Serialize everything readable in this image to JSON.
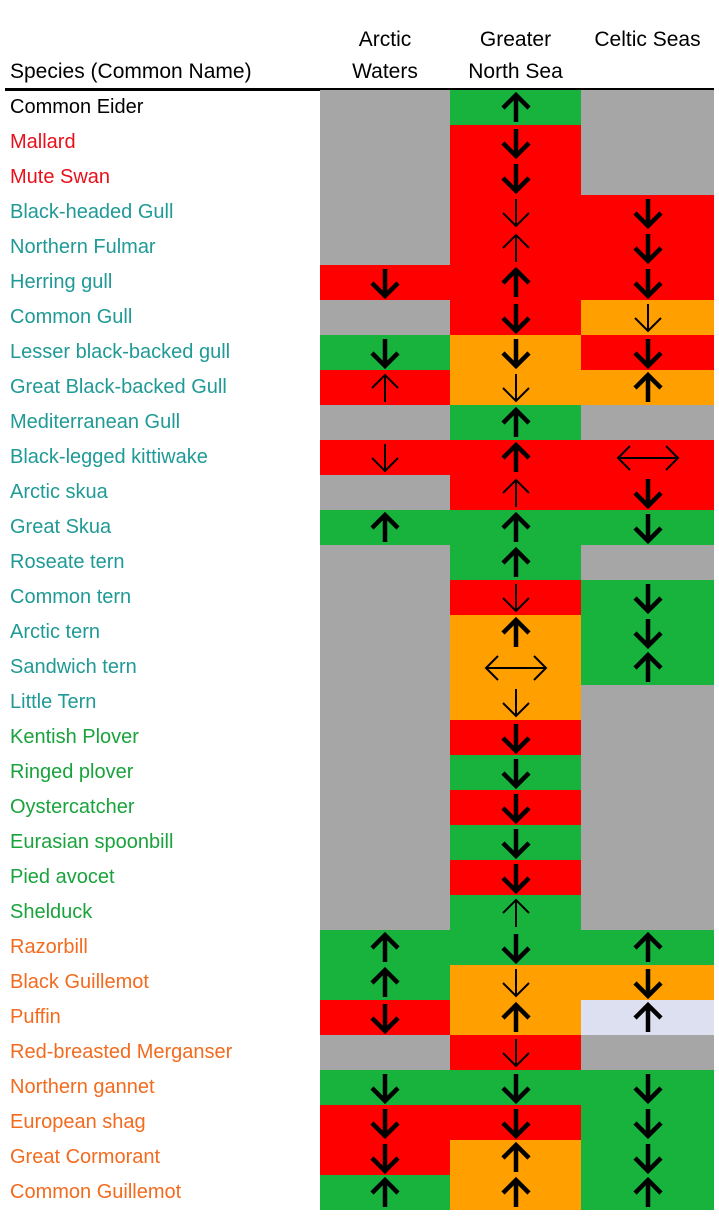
{
  "header": {
    "species": "Species (Common Name)",
    "arctic": "Arctic\nWaters",
    "greater_north_sea": "Greater\nNorth Sea",
    "celtic": "Celtic Seas"
  },
  "colors": {
    "black": "#000000",
    "red_text": "#e8101a",
    "teal_text": "#1f9a96",
    "green_text": "#1aa33c",
    "orange_text": "#f26b1f",
    "grey": "#a6a6a6",
    "green": "#17b33d",
    "red": "#ff0000",
    "orange": "#ff9f00",
    "lavender": "#dce0f0"
  },
  "rows": [
    {
      "name": "Common Eider",
      "group": "black",
      "cells": [
        [
          "grey",
          ""
        ],
        [
          "green",
          "up-bold"
        ],
        [
          "grey",
          ""
        ]
      ]
    },
    {
      "name": "Mallard",
      "group": "red",
      "cells": [
        [
          "grey",
          ""
        ],
        [
          "red",
          "down-bold"
        ],
        [
          "grey",
          ""
        ]
      ]
    },
    {
      "name": "Mute Swan",
      "group": "red",
      "cells": [
        [
          "grey",
          ""
        ],
        [
          "red",
          "down-bold"
        ],
        [
          "grey",
          ""
        ]
      ]
    },
    {
      "name": "Black-headed Gull",
      "group": "teal",
      "cells": [
        [
          "grey",
          ""
        ],
        [
          "red",
          "down-thin"
        ],
        [
          "red",
          "down-bold"
        ]
      ]
    },
    {
      "name": "Northern Fulmar",
      "group": "teal",
      "cells": [
        [
          "grey",
          ""
        ],
        [
          "red",
          "up-thin"
        ],
        [
          "red",
          "down-bold"
        ]
      ]
    },
    {
      "name": "Herring gull",
      "group": "teal",
      "cells": [
        [
          "red",
          "down-bold"
        ],
        [
          "red",
          "up-bold"
        ],
        [
          "red",
          "down-bold"
        ]
      ]
    },
    {
      "name": "Common Gull",
      "group": "teal",
      "cells": [
        [
          "grey",
          ""
        ],
        [
          "red",
          "down-bold"
        ],
        [
          "orange",
          "down-thin"
        ]
      ]
    },
    {
      "name": "Lesser black-backed gull",
      "group": "teal",
      "cells": [
        [
          "green",
          "down-bold"
        ],
        [
          "orange",
          "down-bold"
        ],
        [
          "red",
          "down-bold"
        ]
      ]
    },
    {
      "name": "Great Black-backed Gull",
      "group": "teal",
      "cells": [
        [
          "red",
          "up-thin"
        ],
        [
          "orange",
          "down-thin"
        ],
        [
          "orange",
          "up-bold"
        ]
      ]
    },
    {
      "name": "Mediterranean Gull",
      "group": "teal",
      "cells": [
        [
          "grey",
          ""
        ],
        [
          "green",
          "up-bold"
        ],
        [
          "grey",
          ""
        ]
      ]
    },
    {
      "name": "Black-legged kittiwake",
      "group": "teal",
      "cells": [
        [
          "red",
          "down-thin"
        ],
        [
          "red",
          "up-bold"
        ],
        [
          "red",
          "lr-thin"
        ]
      ]
    },
    {
      "name": "Arctic skua",
      "group": "teal",
      "cells": [
        [
          "grey",
          ""
        ],
        [
          "red",
          "up-thin"
        ],
        [
          "red",
          "down-bold"
        ]
      ]
    },
    {
      "name": "Great Skua",
      "group": "teal",
      "cells": [
        [
          "green",
          "up-bold"
        ],
        [
          "green",
          "up-bold"
        ],
        [
          "green",
          "down-bold"
        ]
      ]
    },
    {
      "name": "Roseate tern",
      "group": "teal",
      "cells": [
        [
          "grey",
          ""
        ],
        [
          "green",
          "up-bold"
        ],
        [
          "grey",
          ""
        ]
      ]
    },
    {
      "name": "Common tern",
      "group": "teal",
      "cells": [
        [
          "grey",
          ""
        ],
        [
          "red",
          "down-thin"
        ],
        [
          "green",
          "down-bold"
        ]
      ]
    },
    {
      "name": "Arctic tern",
      "group": "teal",
      "cells": [
        [
          "grey",
          ""
        ],
        [
          "orange",
          "up-bold"
        ],
        [
          "green",
          "down-bold"
        ]
      ]
    },
    {
      "name": "Sandwich tern",
      "group": "teal",
      "cells": [
        [
          "grey",
          ""
        ],
        [
          "orange",
          "lr-thin"
        ],
        [
          "green",
          "up-bold"
        ]
      ]
    },
    {
      "name": "Little Tern",
      "group": "teal",
      "cells": [
        [
          "grey",
          ""
        ],
        [
          "orange",
          "down-thin"
        ],
        [
          "grey",
          ""
        ]
      ]
    },
    {
      "name": "Kentish Plover",
      "group": "green",
      "cells": [
        [
          "grey",
          ""
        ],
        [
          "red",
          "down-bold"
        ],
        [
          "grey",
          ""
        ]
      ]
    },
    {
      "name": "Ringed plover",
      "group": "green",
      "cells": [
        [
          "grey",
          ""
        ],
        [
          "green",
          "down-bold"
        ],
        [
          "grey",
          ""
        ]
      ]
    },
    {
      "name": "Oystercatcher",
      "group": "green",
      "cells": [
        [
          "grey",
          ""
        ],
        [
          "red",
          "down-bold"
        ],
        [
          "grey",
          ""
        ]
      ]
    },
    {
      "name": "Eurasian spoonbill",
      "group": "green",
      "cells": [
        [
          "grey",
          ""
        ],
        [
          "green",
          "down-bold"
        ],
        [
          "grey",
          ""
        ]
      ]
    },
    {
      "name": "Pied avocet",
      "group": "green",
      "cells": [
        [
          "grey",
          ""
        ],
        [
          "red",
          "down-bold"
        ],
        [
          "grey",
          ""
        ]
      ]
    },
    {
      "name": "Shelduck",
      "group": "green",
      "cells": [
        [
          "grey",
          ""
        ],
        [
          "green",
          "up-thin"
        ],
        [
          "grey",
          ""
        ]
      ]
    },
    {
      "name": "Razorbill",
      "group": "orange",
      "cells": [
        [
          "green",
          "up-bold"
        ],
        [
          "green",
          "down-bold"
        ],
        [
          "green",
          "up-bold"
        ]
      ]
    },
    {
      "name": "Black Guillemot",
      "group": "orange",
      "cells": [
        [
          "green",
          "up-bold"
        ],
        [
          "orange",
          "down-thin"
        ],
        [
          "orange",
          "down-bold"
        ]
      ]
    },
    {
      "name": "Puffin",
      "group": "orange",
      "cells": [
        [
          "red",
          "down-bold"
        ],
        [
          "orange",
          "up-bold"
        ],
        [
          "lavender",
          "up-bold"
        ]
      ]
    },
    {
      "name": "Red-breasted Merganser",
      "group": "orange",
      "cells": [
        [
          "grey",
          ""
        ],
        [
          "red",
          "down-thin"
        ],
        [
          "grey",
          ""
        ]
      ]
    },
    {
      "name": "Northern gannet",
      "group": "orange",
      "cells": [
        [
          "green",
          "down-bold"
        ],
        [
          "green",
          "down-bold"
        ],
        [
          "green",
          "down-bold"
        ]
      ]
    },
    {
      "name": "European shag",
      "group": "orange",
      "cells": [
        [
          "red",
          "down-bold"
        ],
        [
          "red",
          "down-bold"
        ],
        [
          "green",
          "down-bold"
        ]
      ]
    },
    {
      "name": "Great Cormorant",
      "group": "orange",
      "cells": [
        [
          "red",
          "down-bold"
        ],
        [
          "orange",
          "up-bold"
        ],
        [
          "green",
          "down-bold"
        ]
      ]
    },
    {
      "name": "Common Guillemot",
      "group": "orange",
      "cells": [
        [
          "green",
          "up-bold"
        ],
        [
          "orange",
          "up-bold"
        ],
        [
          "green",
          "up-bold"
        ]
      ]
    }
  ]
}
